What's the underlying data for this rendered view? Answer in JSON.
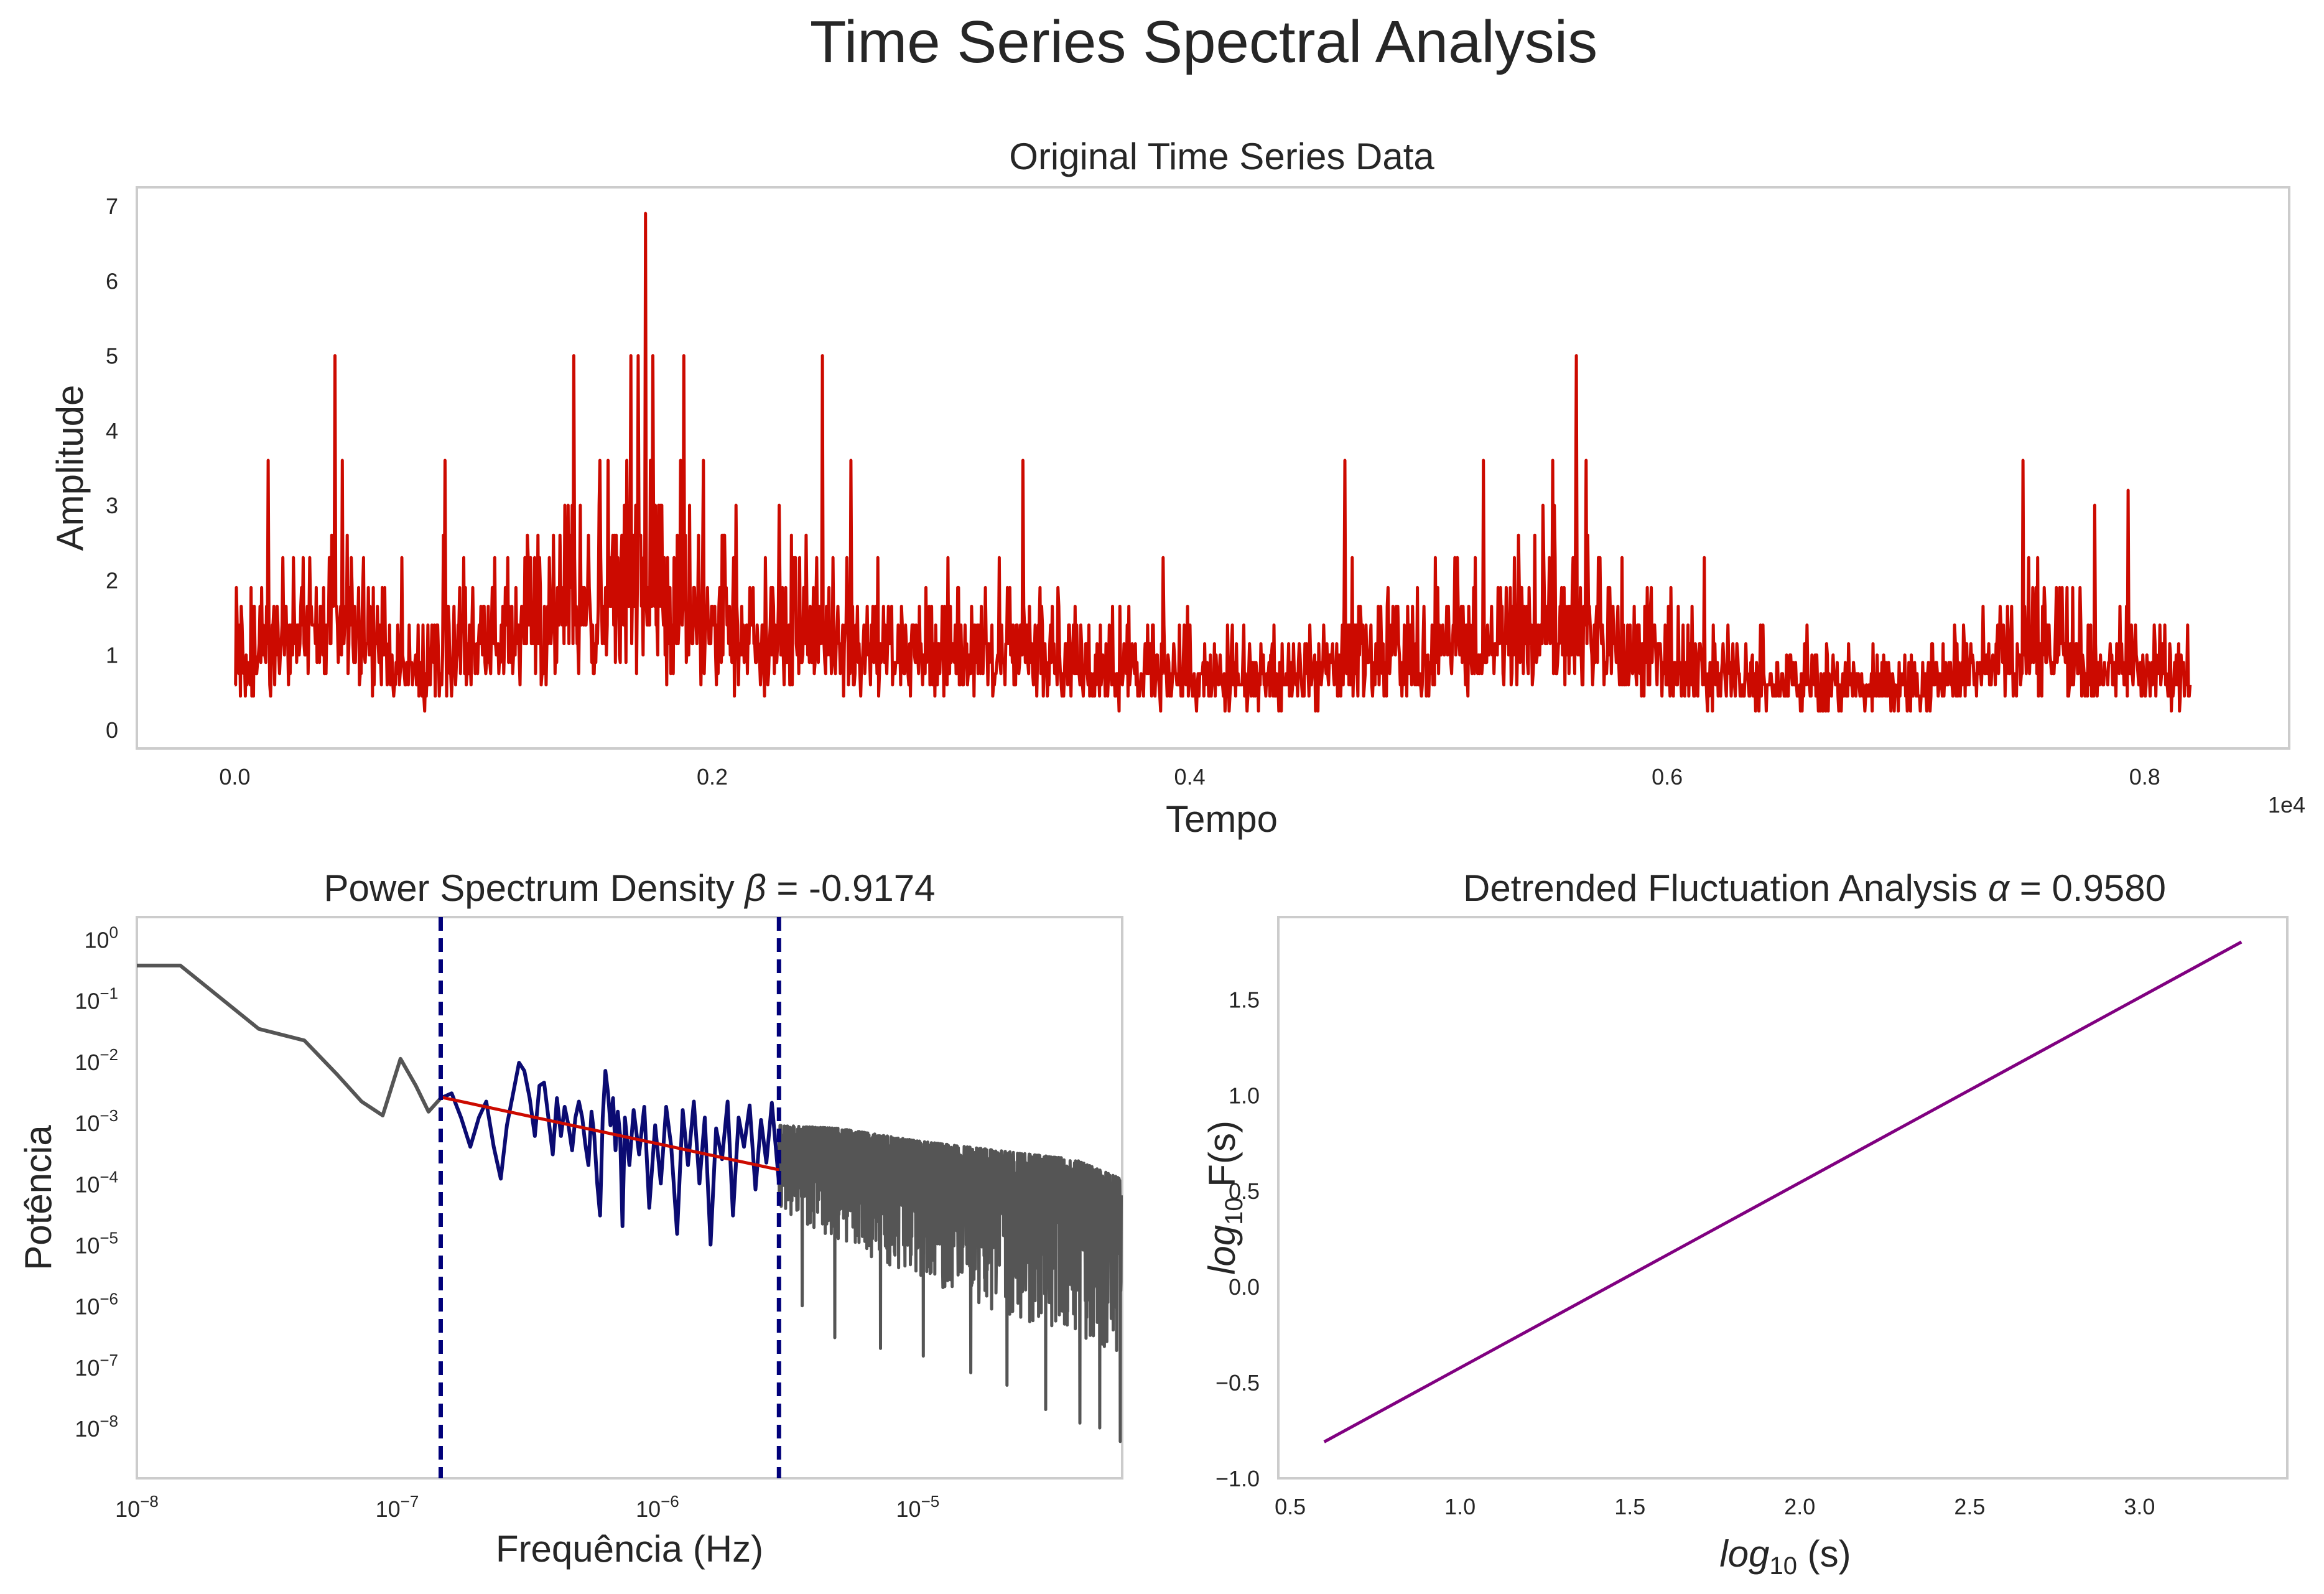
{
  "figure": {
    "title": "Time Series Spectral Analysis"
  },
  "chart_data": [
    {
      "type": "line",
      "title": "Original Time Series Data",
      "xlabel": "Tempo",
      "ylabel": "Amplitude",
      "x_offset_text": "1e4",
      "xlim": [
        -0.041,
        0.8605
      ],
      "ylim": [
        -0.25,
        7.25
      ],
      "xticks": [
        0.0,
        0.2,
        0.4,
        0.6,
        0.8
      ],
      "xtick_labels": [
        "0.0",
        "0.2",
        "0.4",
        "0.6",
        "0.8"
      ],
      "yticks": [
        0,
        1,
        2,
        3,
        4,
        5,
        6,
        7
      ],
      "ytick_labels": [
        "0",
        "1",
        "2",
        "3",
        "4",
        "5",
        "6",
        "7"
      ],
      "grid": false,
      "series": [
        {
          "color": "#cc0a00",
          "x_start": 0.0,
          "x_end": 0.819,
          "activity_profile": {
            "x": [
              0.0,
              0.02,
              0.04,
              0.06,
              0.08,
              0.1,
              0.12,
              0.14,
              0.16,
              0.17,
              0.18,
              0.2,
              0.22,
              0.24,
              0.26,
              0.28,
              0.3,
              0.32,
              0.34,
              0.36,
              0.38,
              0.4,
              0.42,
              0.44,
              0.46,
              0.48,
              0.5,
              0.52,
              0.54,
              0.56,
              0.58,
              0.6,
              0.62,
              0.64,
              0.66,
              0.68,
              0.7,
              0.72,
              0.74,
              0.76,
              0.78,
              0.8,
              0.819
            ],
            "y": [
              0.9,
              1.2,
              1.5,
              1.1,
              0.85,
              1.15,
              1.4,
              1.65,
              1.8,
              1.9,
              1.7,
              1.4,
              1.3,
              1.45,
              1.15,
              1.0,
              1.05,
              1.15,
              0.95,
              0.85,
              0.75,
              0.75,
              0.7,
              0.65,
              0.9,
              1.0,
              1.0,
              1.15,
              1.3,
              1.45,
              1.1,
              0.85,
              0.75,
              0.7,
              0.7,
              0.55,
              0.5,
              0.75,
              1.0,
              1.15,
              0.85,
              0.7,
              0.7
            ]
          },
          "peaks": [
            {
              "x": 0.042,
              "y": 5.0
            },
            {
              "x": 0.045,
              "y": 3.6
            },
            {
              "x": 0.014,
              "y": 3.6
            },
            {
              "x": 0.088,
              "y": 3.6
            },
            {
              "x": 0.142,
              "y": 5.0
            },
            {
              "x": 0.166,
              "y": 5.0
            },
            {
              "x": 0.169,
              "y": 5.0
            },
            {
              "x": 0.172,
              "y": 6.9
            },
            {
              "x": 0.175,
              "y": 5.0
            },
            {
              "x": 0.188,
              "y": 5.0
            },
            {
              "x": 0.246,
              "y": 5.0
            },
            {
              "x": 0.258,
              "y": 3.6
            },
            {
              "x": 0.33,
              "y": 3.6
            },
            {
              "x": 0.465,
              "y": 3.6
            },
            {
              "x": 0.523,
              "y": 3.6
            },
            {
              "x": 0.552,
              "y": 3.6
            },
            {
              "x": 0.562,
              "y": 5.0
            },
            {
              "x": 0.566,
              "y": 3.6
            },
            {
              "x": 0.749,
              "y": 3.6
            },
            {
              "x": 0.793,
              "y": 3.2
            }
          ]
        }
      ]
    },
    {
      "type": "line",
      "title_prefix": "Power Spectrum Density ",
      "title_symbol": "β",
      "title_suffix": " = -0.9174",
      "xlabel": "Frequência (Hz)",
      "ylabel": "Potência",
      "x_scale": "log",
      "y_scale": "log",
      "xlim": [
        1e-08,
        6.1e-05
      ],
      "ylim": [
        1.5e-09,
        2.3
      ],
      "xticks": [
        1e-08,
        1e-07,
        1e-06,
        1e-05
      ],
      "xtick_labels": [
        {
          "base": "10",
          "exp": "−8"
        },
        {
          "base": "10",
          "exp": "−7"
        },
        {
          "base": "10",
          "exp": "−6"
        },
        {
          "base": "10",
          "exp": "−5"
        }
      ],
      "yticks": [
        1e-08,
        1e-07,
        1e-06,
        1e-05,
        0.0001,
        0.001,
        0.01,
        0.1,
        1.0
      ],
      "ytick_labels": [
        {
          "base": "10",
          "exp": "−8"
        },
        {
          "base": "10",
          "exp": "−7"
        },
        {
          "base": "10",
          "exp": "−6"
        },
        {
          "base": "10",
          "exp": "−5"
        },
        {
          "base": "10",
          "exp": "−4"
        },
        {
          "base": "10",
          "exp": "−3"
        },
        {
          "base": "10",
          "exp": "−2"
        },
        {
          "base": "10",
          "exp": "−1"
        },
        {
          "base": "10",
          "exp": "0"
        }
      ],
      "grid": false,
      "fit_range": [
        1.47e-07,
        2.93e-06
      ],
      "series": [
        {
          "color": "#555555",
          "x": [
            1e-08,
            1.47e-08,
            2.94e-08,
            4.4e-08,
            5.9e-08,
            7.3e-08,
            8.8e-08,
            1.03e-07,
            1.18e-07,
            1.32e-07,
            1.47e-07
          ],
          "y": [
            0.37,
            0.37,
            0.034,
            0.022,
            0.006,
            0.0022,
            0.0013,
            0.011,
            0.004,
            0.0015,
            0.0025
          ]
        },
        {
          "color": "#0b0b72",
          "x": [
            1.47e-07,
            1.62e-07,
            1.76e-07,
            1.91e-07,
            2.06e-07,
            2.2e-07,
            2.35e-07,
            2.5e-07,
            2.64e-07,
            2.79e-07,
            2.94e-07,
            3.08e-07,
            3.23e-07,
            3.38e-07,
            3.52e-07,
            3.67e-07,
            3.82e-07,
            3.96e-07,
            4.11e-07,
            4.26e-07,
            4.4e-07,
            4.55e-07,
            4.7e-07,
            4.84e-07,
            4.99e-07,
            5.14e-07,
            5.28e-07,
            5.43e-07,
            5.58e-07,
            5.72e-07,
            5.87e-07,
            6.02e-07,
            6.16e-07,
            6.31e-07,
            6.46e-07,
            6.6e-07,
            6.75e-07,
            6.9e-07,
            7.04e-07,
            7.19e-07,
            7.34e-07,
            7.5e-07,
            7.8e-07,
            8.1e-07,
            8.5e-07,
            8.9e-07,
            9.3e-07,
            9.8e-07,
            1.03e-06,
            1.08e-06,
            1.13e-06,
            1.19e-06,
            1.25e-06,
            1.31e-06,
            1.38e-06,
            1.45e-06,
            1.52e-06,
            1.6e-06,
            1.68e-06,
            1.77e-06,
            1.86e-06,
            1.95e-06,
            2.05e-06,
            2.15e-06,
            2.26e-06,
            2.38e-06,
            2.5e-06,
            2.62e-06,
            2.75e-06,
            2.93e-06
          ],
          "y": [
            0.0025,
            0.003,
            0.0012,
            0.0004,
            0.0012,
            0.0022,
            0.0004,
            0.00012,
            0.0009,
            0.003,
            0.0095,
            0.007,
            0.0025,
            0.0006,
            0.004,
            0.0045,
            0.0011,
            0.0003,
            0.0025,
            0.0006,
            0.0018,
            0.0009,
            0.00035,
            0.0012,
            0.0022,
            0.0012,
            0.00045,
            0.0002,
            0.0015,
            0.0006,
            0.0001,
            3e-05,
            0.0012,
            0.007,
            0.003,
            0.0009,
            0.0025,
            0.00035,
            0.0015,
            0.0006,
            2e-05,
            0.0012,
            0.0002,
            0.0016,
            0.0003,
            0.0018,
            4e-05,
            0.0009,
            0.0001,
            0.0018,
            0.0004,
            1.5e-05,
            0.0016,
            0.0002,
            0.0022,
            0.0001,
            0.0012,
            1e-05,
            0.0008,
            0.00025,
            0.0022,
            3e-05,
            0.0012,
            0.0004,
            0.0019,
            8e-05,
            0.0011,
            0.00022,
            0.0021,
            0.0001
          ]
        },
        {
          "color": "#555555",
          "x_start": 2.93e-06,
          "x_end": 6.05e-05,
          "upper_envelope": {
            "x": [
              2.93e-06,
              5e-06,
              1e-05,
              2e-05,
              4e-05,
              6.05e-05
            ],
            "y": [
              0.0009,
              0.0008,
              0.0005,
              0.00035,
              0.00025,
              0.00012
            ]
          },
          "lower_envelope": {
            "x": [
              2.93e-06,
              5e-06,
              1e-05,
              2e-05,
              4e-05,
              6.05e-05
            ],
            "y": [
              4e-05,
              1e-05,
              3e-06,
              8e-07,
              3e-07,
              1e-07
            ]
          },
          "deep_dips": [
            {
              "x": 3.6e-06,
              "y": 1e-06
            },
            {
              "x": 4.8e-06,
              "y": 3e-07
            },
            {
              "x": 7.2e-06,
              "y": 2e-07
            },
            {
              "x": 1.05e-05,
              "y": 1.5e-07
            },
            {
              "x": 1.6e-05,
              "y": 8e-08
            },
            {
              "x": 2.2e-05,
              "y": 5e-08
            },
            {
              "x": 3.1e-05,
              "y": 2e-08
            },
            {
              "x": 4.2e-05,
              "y": 1.2e-08
            },
            {
              "x": 5e-05,
              "y": 1e-08
            },
            {
              "x": 6e-05,
              "y": 6e-09
            }
          ]
        },
        {
          "name": "fit",
          "color": "#cc0a00",
          "x": [
            1.47e-07,
            2.93e-06
          ],
          "y": [
            0.0026,
            0.000168
          ]
        }
      ],
      "vlines": [
        {
          "x": 1.47e-07,
          "color": "#00007a",
          "style": "dashed"
        },
        {
          "x": 2.93e-06,
          "color": "#00007a",
          "style": "dashed"
        }
      ]
    },
    {
      "type": "line",
      "title_prefix": "Detrended Fluctuation Analysis ",
      "title_symbol": "α",
      "title_suffix": " = 0.9580",
      "xlabel_log": "log",
      "xlabel_sub": "10",
      "xlabel_rest": " (s)",
      "ylabel_log": "log",
      "ylabel_sub": "10",
      "ylabel_rest": " F(s)",
      "xlim": [
        0.465,
        3.435
      ],
      "ylim": [
        -1.0,
        1.93
      ],
      "xticks": [
        0.5,
        1.0,
        1.5,
        2.0,
        2.5,
        3.0
      ],
      "xtick_labels": [
        "0.5",
        "1.0",
        "1.5",
        "2.0",
        "2.5",
        "3.0"
      ],
      "yticks": [
        -1.0,
        -0.5,
        0.0,
        0.5,
        1.0,
        1.5
      ],
      "ytick_labels": [
        "−1.0",
        "−0.5",
        "0.0",
        "0.5",
        "1.0",
        "1.5"
      ],
      "grid": false,
      "series": [
        {
          "color": "#800080",
          "x": [
            0.6,
            3.3
          ],
          "y": [
            -0.81,
            1.8
          ]
        }
      ]
    }
  ]
}
